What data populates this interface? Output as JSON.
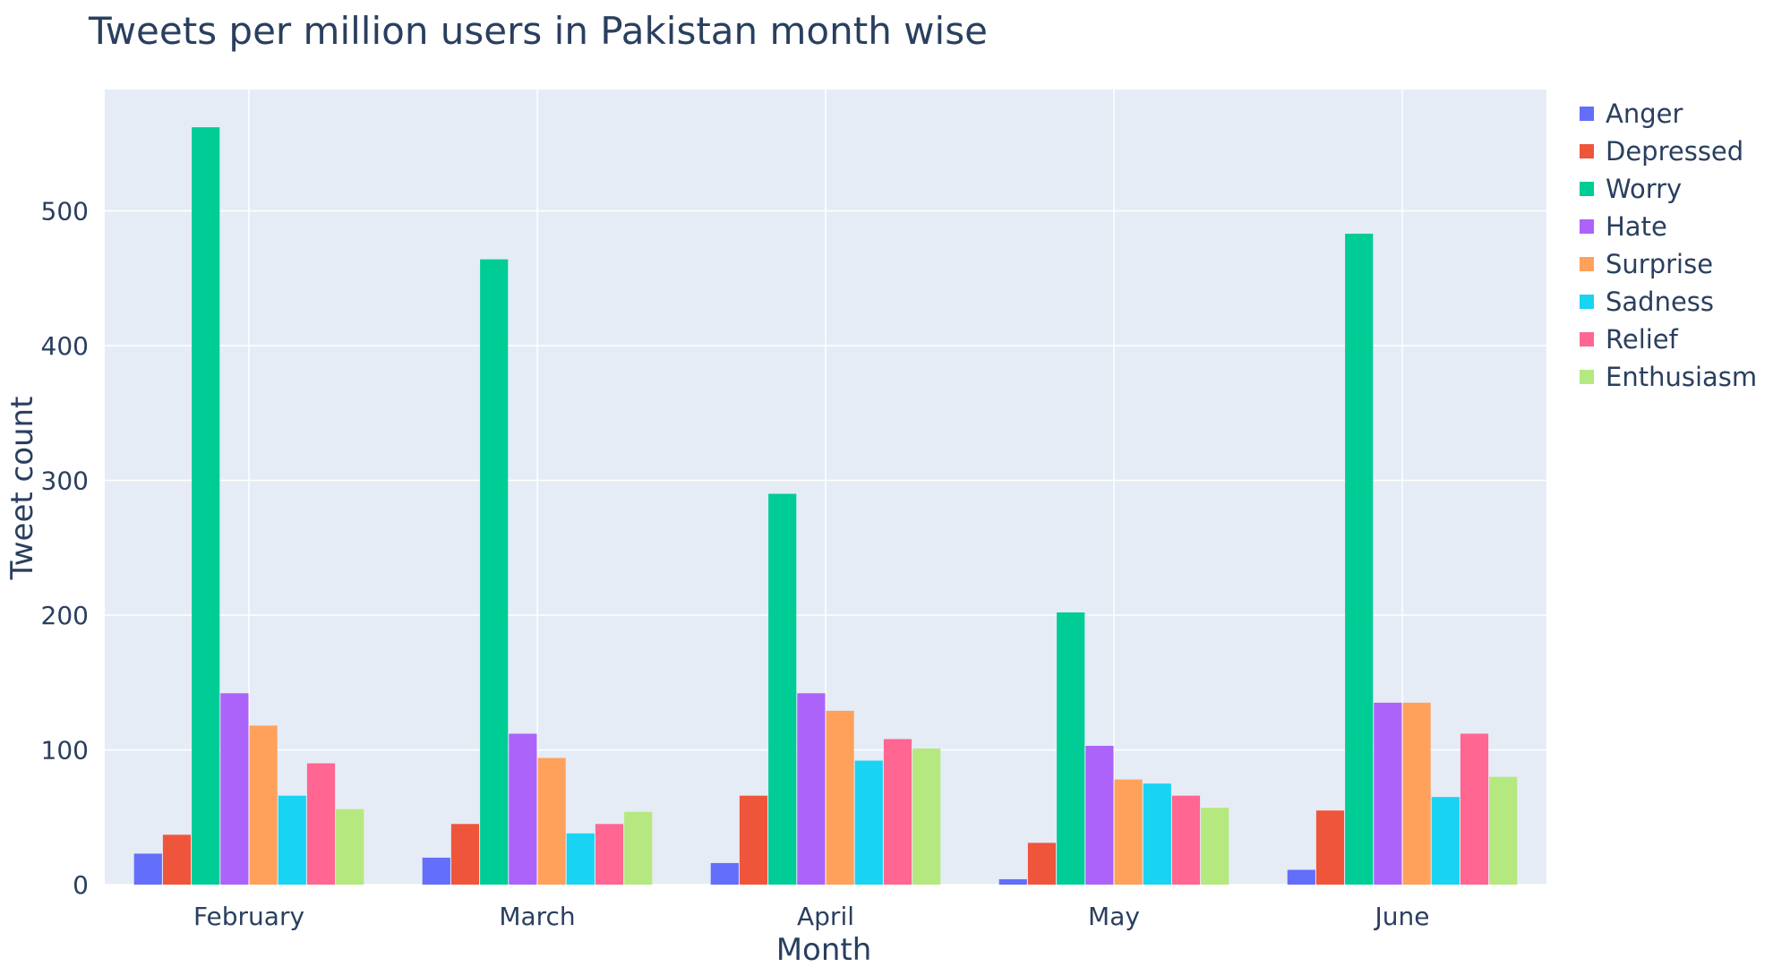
{
  "chart_data": {
    "type": "bar",
    "title": "Tweets per million users in Pakistan month wise",
    "xlabel": "Month",
    "ylabel": "Tweet count",
    "categories": [
      "February",
      "March",
      "April",
      "May",
      "June"
    ],
    "ylim": [
      0,
      590
    ],
    "yticks": [
      0,
      100,
      200,
      300,
      400,
      500
    ],
    "grid": true,
    "legend_position": "right",
    "plot_background": "#e5ecf6",
    "series": [
      {
        "name": "Anger",
        "color": "#636efa",
        "values": [
          23,
          20,
          16,
          4,
          11
        ]
      },
      {
        "name": "Depressed",
        "color": "#ef553b",
        "values": [
          37,
          45,
          66,
          31,
          55
        ]
      },
      {
        "name": "Worry",
        "color": "#00cc96",
        "values": [
          562,
          464,
          290,
          202,
          483
        ]
      },
      {
        "name": "Hate",
        "color": "#ab63fa",
        "values": [
          142,
          112,
          142,
          103,
          135
        ]
      },
      {
        "name": "Surprise",
        "color": "#ffa15a",
        "values": [
          118,
          94,
          129,
          78,
          135
        ]
      },
      {
        "name": "Sadness",
        "color": "#19d3f3",
        "values": [
          66,
          38,
          92,
          75,
          65
        ]
      },
      {
        "name": "Relief",
        "color": "#ff6692",
        "values": [
          90,
          45,
          108,
          66,
          112
        ]
      },
      {
        "name": "Enthusiasm",
        "color": "#b6e880",
        "values": [
          56,
          54,
          101,
          57,
          80
        ]
      }
    ]
  }
}
